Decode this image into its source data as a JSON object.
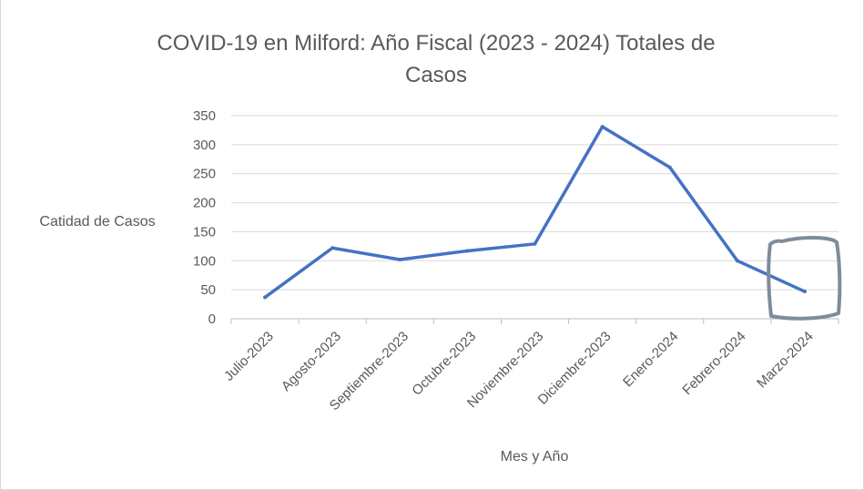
{
  "chart_data": {
    "type": "line",
    "title": "COVID-19 en Milford: Año Fiscal (2023 - 2024) Totales de Casos",
    "title_lines": [
      "COVID-19 en Milford: Año Fiscal (2023 - 2024) Totales de",
      "Casos"
    ],
    "xlabel": "Mes y Año",
    "ylabel": "Catidad de Casos",
    "categories": [
      "Julio-2023",
      "Agosto-2023",
      "Septiembre-2023",
      "Octubre-2023",
      "Noviembre-2023",
      "Diciembre-2023",
      "Enero-2024",
      "Febrero-2024",
      "Marzo-2024"
    ],
    "series": [
      {
        "values": [
          37,
          122,
          102,
          117,
          129,
          331,
          261,
          100,
          47
        ]
      }
    ],
    "ylim": [
      0,
      350
    ],
    "yticks": [
      0,
      50,
      100,
      150,
      200,
      250,
      300,
      350
    ],
    "grid": true,
    "legend": "none",
    "line_color": "#4472c4",
    "annotation_color": "#7f8c99"
  }
}
